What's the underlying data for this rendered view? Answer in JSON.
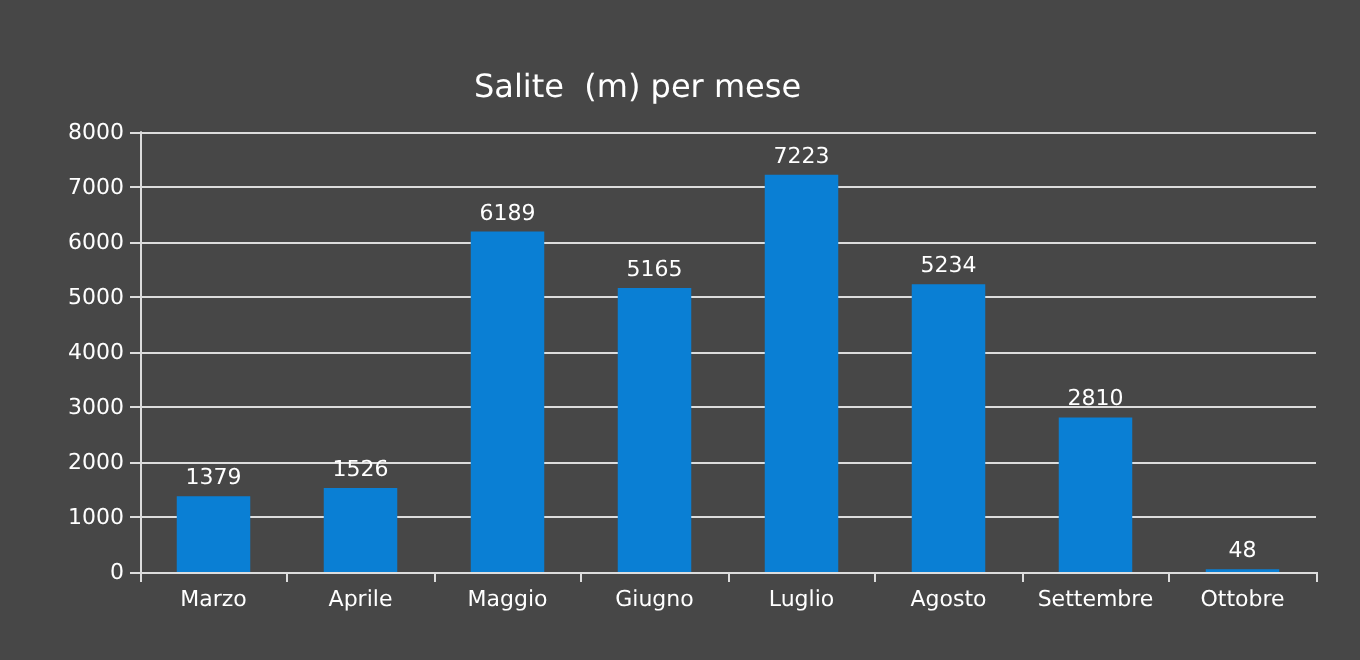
{
  "chart_data": {
    "type": "bar",
    "title": "Salite  (m) per mese",
    "categories": [
      "Marzo",
      "Aprile",
      "Maggio",
      "Giugno",
      "Luglio",
      "Agosto",
      "Settembre",
      "Ottobre"
    ],
    "values": [
      1379,
      1526,
      6189,
      5165,
      7223,
      5234,
      2810,
      48
    ],
    "color": "#0a7fd4",
    "ylim": [
      0,
      8000
    ],
    "yticks": [
      0,
      1000,
      2000,
      3000,
      4000,
      5000,
      6000,
      7000,
      8000
    ],
    "grid": "y",
    "data_labels": true
  }
}
